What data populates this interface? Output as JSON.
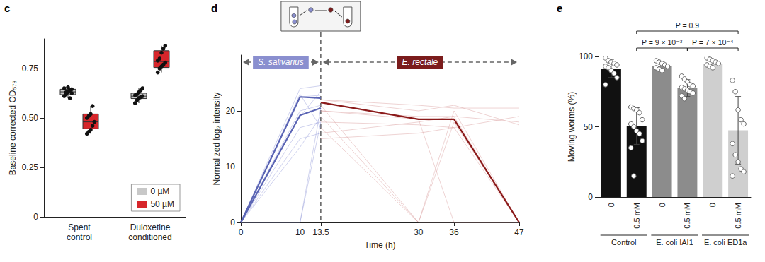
{
  "chart_data": [
    {
      "title": "c",
      "type": "box",
      "ylabel": "Baseline corrected OD₅₇₈",
      "categories": [
        "Spent control",
        "Duloxetine conditioned"
      ],
      "ylim": [
        0,
        0.9
      ],
      "yticks": [
        0,
        0.25,
        {
          "value": 0.5,
          "label": "0.50"
        },
        0.75
      ],
      "legend": "lower right",
      "grid": false,
      "series": [
        {
          "name": "0 µM",
          "color": "#c8c8c8",
          "boxes": [
            [
              0.6,
              0.618,
              0.632,
              0.645,
              0.655
            ],
            [
              0.575,
              0.598,
              0.61,
              0.625,
              0.65
            ]
          ],
          "points": [
            [
              0.61,
              0.62,
              0.63,
              0.64,
              0.645,
              0.65,
              0.63,
              0.655,
              0.6,
              0.625
            ],
            [
              0.575,
              0.59,
              0.6,
              0.605,
              0.61,
              0.615,
              0.62,
              0.63,
              0.64,
              0.65
            ]
          ]
        },
        {
          "name": "50 µM",
          "color": "#d7262b",
          "boxes": [
            [
              0.42,
              0.445,
              0.48,
              0.52,
              0.56
            ],
            [
              0.73,
              0.755,
              0.785,
              0.84,
              0.865
            ]
          ],
          "points": [
            [
              0.42,
              0.43,
              0.44,
              0.46,
              0.48,
              0.5,
              0.51,
              0.52,
              0.56
            ],
            [
              0.73,
              0.75,
              0.76,
              0.77,
              0.78,
              0.79,
              0.8,
              0.83,
              0.85,
              0.865
            ]
          ]
        }
      ]
    },
    {
      "title": "d",
      "type": "line",
      "xlabel": "Time (h)",
      "ylabel": "Normalized log₂ intensity",
      "x": [
        0,
        10,
        13.5,
        30,
        36,
        47
      ],
      "xlim": [
        0,
        47
      ],
      "xticks": [
        0,
        10,
        13.5,
        30,
        36,
        47
      ],
      "ylim": [
        0,
        30
      ],
      "yticks": [
        0,
        10,
        20
      ],
      "grid": false,
      "vline": 13.5,
      "annotations": [
        {
          "text": "S. salivarius",
          "x": [
            0,
            13.5
          ],
          "color": "#8a8fcf"
        },
        {
          "text": "E. rectale",
          "x": [
            13.5,
            47
          ],
          "color": "#7b1c1c"
        }
      ],
      "series": [
        {
          "color": "#9aa0dc",
          "line_style": "solid",
          "values": [
            0,
            24,
            24.5,
            null,
            null,
            null
          ]
        },
        {
          "color": "#9aa0dc",
          "line_style": "solid",
          "values": [
            0,
            22.5,
            22.8,
            null,
            null,
            null
          ]
        },
        {
          "color": "#9aa0dc",
          "line_style": "solid",
          "values": [
            0,
            20,
            21,
            null,
            null,
            null
          ]
        },
        {
          "color": "#9aa0dc",
          "line_style": "solid",
          "values": [
            0,
            17,
            18,
            null,
            null,
            null
          ]
        },
        {
          "color": "#9aa0dc",
          "line_style": "solid",
          "values": [
            0,
            15,
            16,
            null,
            null,
            null
          ]
        },
        {
          "color": "#9aa0dc",
          "line_style": "solid",
          "values": [
            0,
            13.5,
            19,
            null,
            null,
            null
          ]
        },
        {
          "color": "#9aa0dc",
          "line_style": "solid",
          "values": [
            0,
            0,
            20.5,
            null,
            null,
            null
          ]
        },
        {
          "color": "#9aa0dc",
          "line_style": "solid",
          "values": [
            0,
            0,
            18,
            null,
            null,
            null
          ]
        },
        {
          "color": "#9aa0dc",
          "line_style": "solid",
          "values": [
            0,
            23,
            17,
            null,
            null,
            null
          ]
        },
        {
          "color": "#9aa0dc",
          "line_style": "solid",
          "values": [
            0,
            19,
            23.5,
            null,
            null,
            null
          ]
        },
        {
          "color": "#dba3a3",
          "line_style": "solid",
          "values": [
            null,
            null,
            22,
            21,
            20.5,
            20.5
          ]
        },
        {
          "color": "#dba3a3",
          "line_style": "solid",
          "values": [
            null,
            null,
            20,
            19,
            19,
            18
          ]
        },
        {
          "color": "#dba3a3",
          "line_style": "solid",
          "values": [
            null,
            null,
            18,
            17.5,
            17,
            0
          ]
        },
        {
          "color": "#dba3a3",
          "line_style": "solid",
          "values": [
            null,
            null,
            16,
            18,
            19,
            0
          ]
        },
        {
          "color": "#dba3a3",
          "line_style": "solid",
          "values": [
            null,
            null,
            21,
            0,
            0,
            0
          ]
        },
        {
          "color": "#dba3a3",
          "line_style": "solid",
          "values": [
            null,
            null,
            19,
            0,
            20,
            0
          ]
        },
        {
          "color": "#dba3a3",
          "line_style": "solid",
          "values": [
            null,
            null,
            17,
            0,
            18,
            0
          ]
        },
        {
          "color": "#dba3a3",
          "line_style": "solid",
          "values": [
            null,
            null,
            22,
            20,
            21,
            17.5
          ]
        },
        {
          "color": "#dba3a3",
          "line_style": "solid",
          "values": [
            null,
            null,
            15,
            16,
            17,
            19
          ]
        },
        {
          "color": "#dba3a3",
          "line_style": "solid",
          "values": [
            null,
            null,
            20,
            18.5,
            0,
            0
          ]
        },
        {
          "color": "#5a64b4",
          "line_style": "bold",
          "values": [
            0,
            19.2,
            20.5,
            null,
            null,
            null
          ]
        },
        {
          "color": "#5a64b4",
          "line_style": "bold",
          "values": [
            0,
            22.5,
            22.3,
            null,
            null,
            null
          ]
        },
        {
          "color": "#8b1a1a",
          "line_style": "bold",
          "values": [
            null,
            null,
            21.5,
            18.5,
            18.5,
            0
          ]
        }
      ]
    },
    {
      "title": "e",
      "type": "bar",
      "ylabel": "Moving worms (%)",
      "categories": [
        "0",
        "0.5 mM",
        "0",
        "0.5 mM",
        "0",
        "0.5 mM"
      ],
      "values": [
        91.5,
        50.5,
        93.5,
        77.5,
        95,
        47.5
      ],
      "errors": [
        6.5,
        13,
        3,
        6,
        3,
        24
      ],
      "points": [
        [
          99,
          97,
          96,
          95,
          94,
          93,
          92,
          90,
          88,
          85,
          80
        ],
        [
          64,
          63,
          62,
          60,
          55,
          52,
          50,
          47,
          45,
          40,
          35,
          15
        ],
        [
          97,
          96,
          95,
          94,
          93,
          92,
          91,
          90
        ],
        [
          86,
          84,
          82,
          80,
          79,
          78,
          77,
          76,
          75,
          74,
          72,
          70
        ],
        [
          99,
          98,
          97,
          96,
          95,
          94,
          93,
          92
        ],
        [
          83,
          75,
          62,
          55,
          52,
          38,
          30,
          25,
          20,
          18,
          15
        ]
      ],
      "colors": [
        "#111111",
        "#111111",
        "#8c8c8c",
        "#8c8c8c",
        "#cfcfcf",
        "#cfcfcf"
      ],
      "ylim": [
        0,
        100
      ],
      "yticks": [
        0,
        50,
        100
      ],
      "grid": false,
      "groups": [
        {
          "label": "Control",
          "bars": [
            0,
            1
          ]
        },
        {
          "label": "E. coli IAI1",
          "bars": [
            2,
            3
          ]
        },
        {
          "label": "E. coli ED1a",
          "bars": [
            4,
            5
          ]
        }
      ],
      "comparisons": [
        {
          "text": "P = 0.9",
          "between": [
            1,
            5
          ]
        },
        {
          "text": "P = 9 × 10⁻³",
          "between": [
            1,
            3
          ]
        },
        {
          "text": "P = 7 × 10⁻⁴",
          "between": [
            3,
            5
          ]
        }
      ]
    }
  ]
}
